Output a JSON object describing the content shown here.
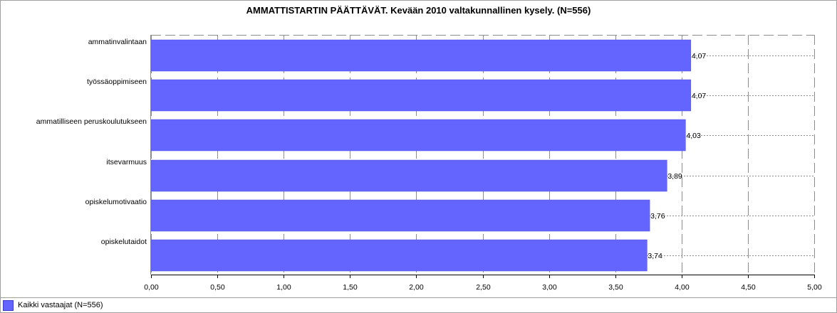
{
  "chart_data": {
    "type": "bar",
    "orientation": "horizontal",
    "title": "AMMATTISTARTIN PÄÄTTÄVÄT. Kevään 2010 valtakunnallinen kysely. (N=556)",
    "categories": [
      "ammatinvalintaan",
      "työssäoppimiseen",
      "ammatilliseen peruskoulutukseen",
      "itsevarmuus",
      "opiskelumotivaatio",
      "opiskelutaidot"
    ],
    "series": [
      {
        "name": "Kaikki vastaajat (N=556)",
        "values": [
          4.07,
          4.07,
          4.03,
          3.89,
          3.76,
          3.74
        ],
        "value_labels": [
          "4,07",
          "4,07",
          "4,03",
          "3,89",
          "3,76",
          "3,74"
        ],
        "color": "#6464ff"
      }
    ],
    "xlim": [
      0,
      5
    ],
    "xticks": [
      0,
      0.5,
      1,
      1.5,
      2,
      2.5,
      3,
      3.5,
      4,
      4.5,
      5
    ],
    "xtick_labels": [
      "0,00",
      "0,50",
      "1,00",
      "1,50",
      "2,00",
      "2,50",
      "3,00",
      "3,50",
      "4,00",
      "4,50",
      "5,00"
    ],
    "grid": true,
    "legend_position": "bottom-left"
  }
}
